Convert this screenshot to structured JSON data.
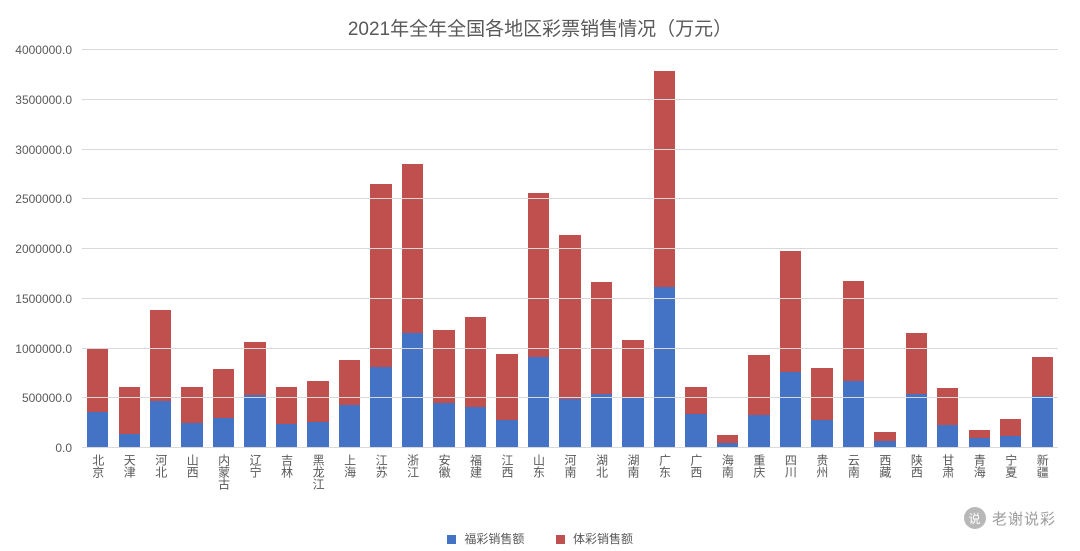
{
  "title": "2021年全年全国各地区彩票销售情况（万元）",
  "title_color": "#595959",
  "title_fontsize": 19,
  "chart": {
    "type": "stacked-bar",
    "background_color": "#ffffff",
    "grid_color": "#d9d9d9",
    "axis_text_color": "#595959",
    "axis_fontsize": 12,
    "ylim": [
      0,
      4000000
    ],
    "ytick_step": 500000,
    "ytick_labels": [
      "0.0",
      "500000.0",
      "1000000.0",
      "1500000.0",
      "2000000.0",
      "2500000.0",
      "3000000.0",
      "3500000.0",
      "4000000.0"
    ],
    "bar_width_ratio": 0.68,
    "series": [
      {
        "key": "welfare",
        "label": "福彩销售额",
        "color": "#4472c4"
      },
      {
        "key": "sports",
        "label": "体彩销售额",
        "color": "#c0504d"
      }
    ],
    "categories": [
      "北京",
      "天津",
      "河北",
      "山西",
      "内蒙古",
      "辽宁",
      "吉林",
      "黑龙江",
      "上海",
      "江苏",
      "浙江",
      "安徽",
      "福建",
      "江西",
      "山东",
      "河南",
      "湖北",
      "湖南",
      "广东",
      "广西",
      "海南",
      "重庆",
      "四川",
      "贵州",
      "云南",
      "西藏",
      "陕西",
      "甘肃",
      "青海",
      "宁夏",
      "新疆"
    ],
    "data": {
      "welfare": [
        360000,
        140000,
        470000,
        250000,
        300000,
        530000,
        240000,
        260000,
        430000,
        810000,
        1160000,
        450000,
        410000,
        280000,
        910000,
        490000,
        540000,
        510000,
        1620000,
        340000,
        50000,
        330000,
        760000,
        280000,
        670000,
        70000,
        540000,
        230000,
        100000,
        120000,
        520000
      ],
      "sports": [
        650000,
        470000,
        920000,
        360000,
        490000,
        540000,
        370000,
        410000,
        450000,
        1840000,
        1690000,
        740000,
        910000,
        670000,
        1650000,
        1650000,
        1130000,
        580000,
        2170000,
        270000,
        80000,
        610000,
        1220000,
        520000,
        1010000,
        90000,
        620000,
        370000,
        80000,
        170000,
        390000
      ]
    }
  },
  "watermark": {
    "badge_text": "说",
    "text": "老谢说彩",
    "text_color": "#9c9c9c",
    "badge_color": "#b8b8b8"
  }
}
